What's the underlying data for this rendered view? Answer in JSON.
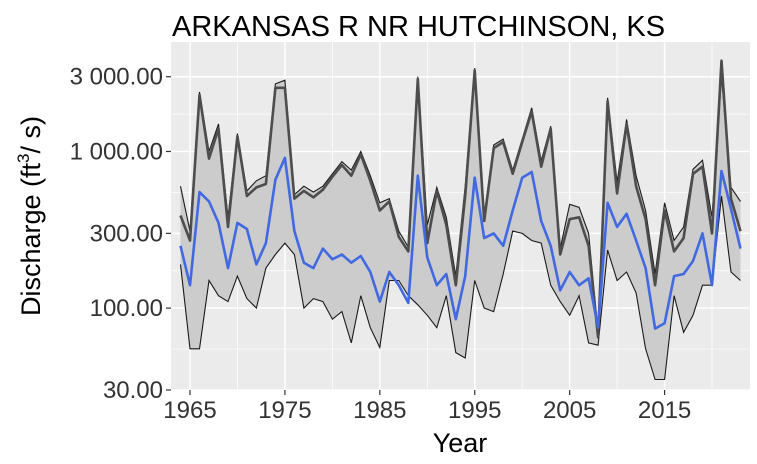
{
  "chart_data": {
    "type": "line",
    "title": "ARKANSAS R NR HUTCHINSON, KS",
    "xlabel": "Year",
    "ylabel": {
      "main": "Discharge (ft",
      "sup": "3",
      "tail": "/ s)"
    },
    "y_scale": "log10",
    "ylim": [
      30,
      5000
    ],
    "y_ticks": [
      30,
      100,
      300,
      1000,
      3000
    ],
    "y_tick_labels": [
      "30.00",
      "100.00",
      "300.00",
      "1 000.00",
      "3 000.00"
    ],
    "xlim": [
      1963,
      2024
    ],
    "x_ticks": [
      1965,
      1975,
      1985,
      1995,
      2005,
      2015
    ],
    "x_tick_labels": [
      "1965",
      "1975",
      "1985",
      "1995",
      "2005",
      "2015"
    ],
    "grid": true,
    "legend": "none",
    "colors": {
      "panel": "#ebebeb",
      "grid": "#ffffff",
      "ribbon": "#cccccc",
      "ribbon_edge": "#1a1a1a",
      "observed": "#4d4d4d",
      "median": "#4169e1"
    },
    "years": [
      1964,
      1965,
      1966,
      1967,
      1968,
      1969,
      1970,
      1971,
      1972,
      1973,
      1974,
      1975,
      1976,
      1977,
      1978,
      1979,
      1980,
      1981,
      1982,
      1983,
      1984,
      1985,
      1986,
      1987,
      1988,
      1989,
      1990,
      1991,
      1992,
      1993,
      1994,
      1995,
      1996,
      1997,
      1998,
      1999,
      2000,
      2001,
      2002,
      2003,
      2004,
      2005,
      2006,
      2007,
      2008,
      2009,
      2010,
      2011,
      2012,
      2013,
      2014,
      2015,
      2016,
      2017,
      2018,
      2019,
      2020,
      2021,
      2022,
      2023
    ],
    "series": [
      {
        "name": "Upper bound",
        "values": [
          600,
          310,
          2400,
          1000,
          1500,
          380,
          1300,
          560,
          650,
          700,
          2700,
          2850,
          530,
          600,
          550,
          600,
          720,
          860,
          760,
          1000,
          700,
          470,
          500,
          310,
          245,
          3000,
          340,
          590,
          380,
          160,
          600,
          3400,
          390,
          1100,
          1200,
          760,
          1200,
          1900,
          870,
          1450,
          240,
          460,
          440,
          300,
          70,
          2200,
          640,
          1600,
          700,
          420,
          165,
          470,
          270,
          330,
          770,
          880,
          380,
          3000,
          590,
          480
        ]
      },
      {
        "name": "Observed",
        "values": [
          390,
          270,
          2300,
          900,
          1400,
          330,
          1250,
          520,
          590,
          620,
          2550,
          2550,
          500,
          560,
          510,
          570,
          690,
          820,
          700,
          960,
          650,
          420,
          480,
          285,
          230,
          2900,
          260,
          560,
          340,
          140,
          520,
          3300,
          360,
          1050,
          1150,
          720,
          1150,
          1800,
          800,
          1400,
          220,
          370,
          380,
          250,
          65,
          2100,
          540,
          1500,
          600,
          370,
          140,
          420,
          230,
          280,
          720,
          800,
          300,
          3800,
          500,
          310
        ]
      },
      {
        "name": "Median",
        "values": [
          250,
          140,
          550,
          480,
          350,
          180,
          350,
          320,
          190,
          260,
          660,
          910,
          310,
          195,
          180,
          240,
          205,
          220,
          195,
          215,
          170,
          110,
          170,
          140,
          108,
          700,
          210,
          140,
          165,
          85,
          160,
          680,
          280,
          300,
          250,
          420,
          680,
          740,
          360,
          250,
          130,
          170,
          140,
          155,
          75,
          470,
          330,
          400,
          270,
          180,
          74,
          80,
          160,
          165,
          200,
          300,
          140,
          750,
          430,
          240
        ]
      },
      {
        "name": "Lower bound",
        "values": [
          190,
          55,
          55,
          150,
          120,
          110,
          160,
          115,
          100,
          180,
          220,
          260,
          220,
          100,
          115,
          110,
          85,
          95,
          60,
          120,
          75,
          56,
          150,
          150,
          120,
          105,
          90,
          75,
          120,
          52,
          48,
          150,
          100,
          95,
          165,
          310,
          300,
          270,
          260,
          140,
          110,
          90,
          120,
          60,
          58,
          235,
          150,
          170,
          125,
          55,
          35,
          35,
          120,
          70,
          90,
          140,
          140,
          520,
          170,
          150
        ]
      }
    ]
  }
}
